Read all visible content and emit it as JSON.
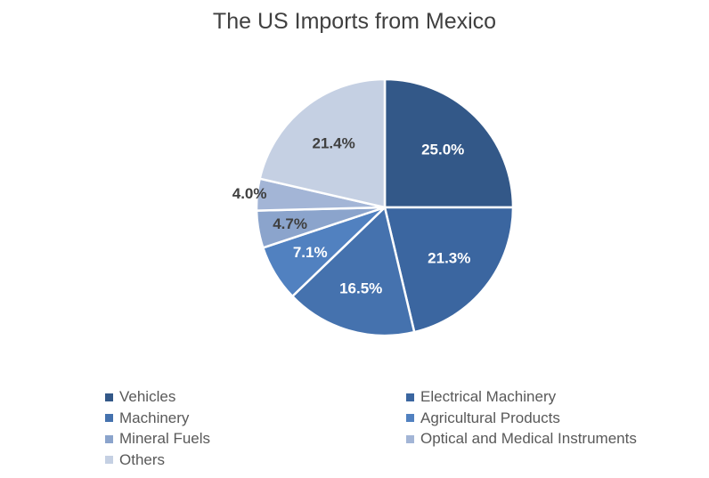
{
  "chart_data": {
    "type": "pie",
    "title": "The US Imports from Mexico",
    "slices": [
      {
        "label": "Vehicles",
        "value": 25.0,
        "display": "25.0%",
        "color": "#335888",
        "label_color": "#ffffff"
      },
      {
        "label": "Electrical Machinery",
        "value": 21.3,
        "display": "21.3%",
        "color": "#3b66a0",
        "label_color": "#ffffff"
      },
      {
        "label": "Machinery",
        "value": 16.5,
        "display": "16.5%",
        "color": "#4572ae",
        "label_color": "#ffffff"
      },
      {
        "label": "Agricultural Products",
        "value": 7.1,
        "display": "7.1%",
        "color": "#5181c0",
        "label_color": "#ffffff"
      },
      {
        "label": "Mineral Fuels",
        "value": 4.7,
        "display": "4.7%",
        "color": "#8ba4cc",
        "label_color": "#404040"
      },
      {
        "label": "Optical and Medical Instruments",
        "value": 4.0,
        "display": "4.0%",
        "color": "#a3b5d6",
        "label_color": "#404040"
      },
      {
        "label": "Others",
        "value": 21.4,
        "display": "21.4%",
        "color": "#c5d0e3",
        "label_color": "#404040"
      }
    ],
    "legend_position": "bottom"
  }
}
